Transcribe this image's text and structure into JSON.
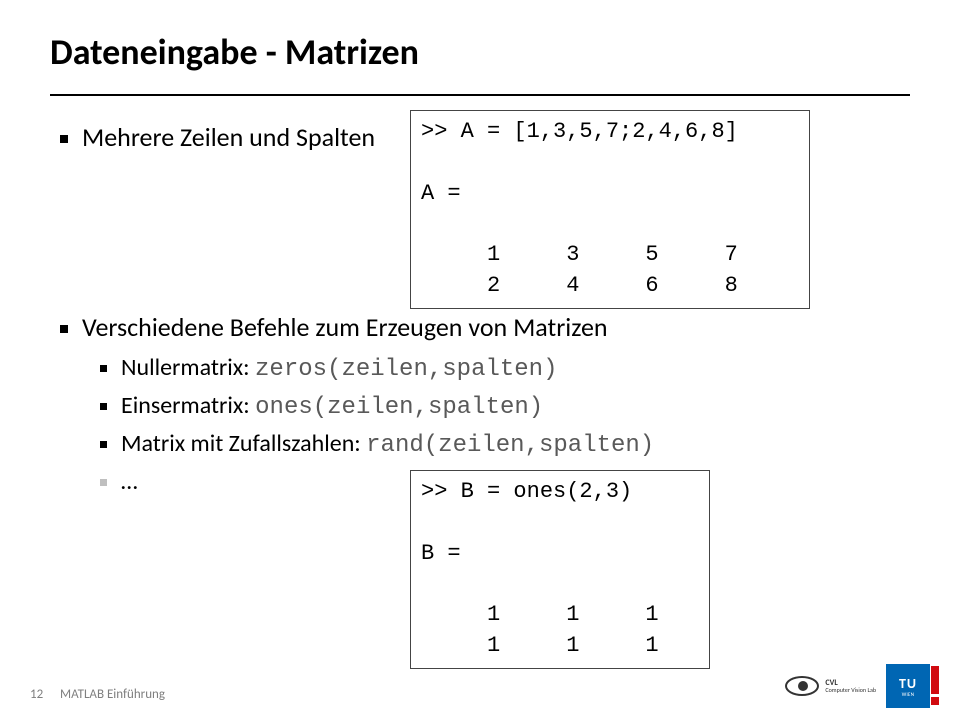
{
  "title": "Dateneingabe - Matrizen",
  "bullets": {
    "b1": "Mehrere Zeilen und Spalten",
    "b2": "Verschiedene Befehle zum Erzeugen von Matrizen",
    "sub1_label": "Nullermatrix: ",
    "sub1_code": "zeros(zeilen,spalten)",
    "sub2_label": "Einsermatrix: ",
    "sub2_code": "ones(zeilen,spalten)",
    "sub3_label": "Matrix mit Zufallszahlen: ",
    "sub3_code": "rand(zeilen,spalten)",
    "sub4": "…"
  },
  "codebox_top": ">> A = [1,3,5,7;2,4,6,8]\n\nA =\n\n     1     3     5     7\n     2     4     6     8",
  "codebox_bottom": ">> B = ones(2,3)\n\nB =\n\n     1     1     1\n     1     1     1",
  "footer": {
    "page": "12",
    "text": "MATLAB Einführung"
  },
  "logos": {
    "cvl_line1": "CVL",
    "cvl_line2": "Computer Vision Lab",
    "tu_text": "TU",
    "tu_sub": "WIEN"
  },
  "colors": {
    "text": "#000000",
    "code": "#595959",
    "footer": "#7f7f7f",
    "tu_blue": "#0066b3",
    "tu_red": "#d10a10",
    "border": "#444444"
  }
}
